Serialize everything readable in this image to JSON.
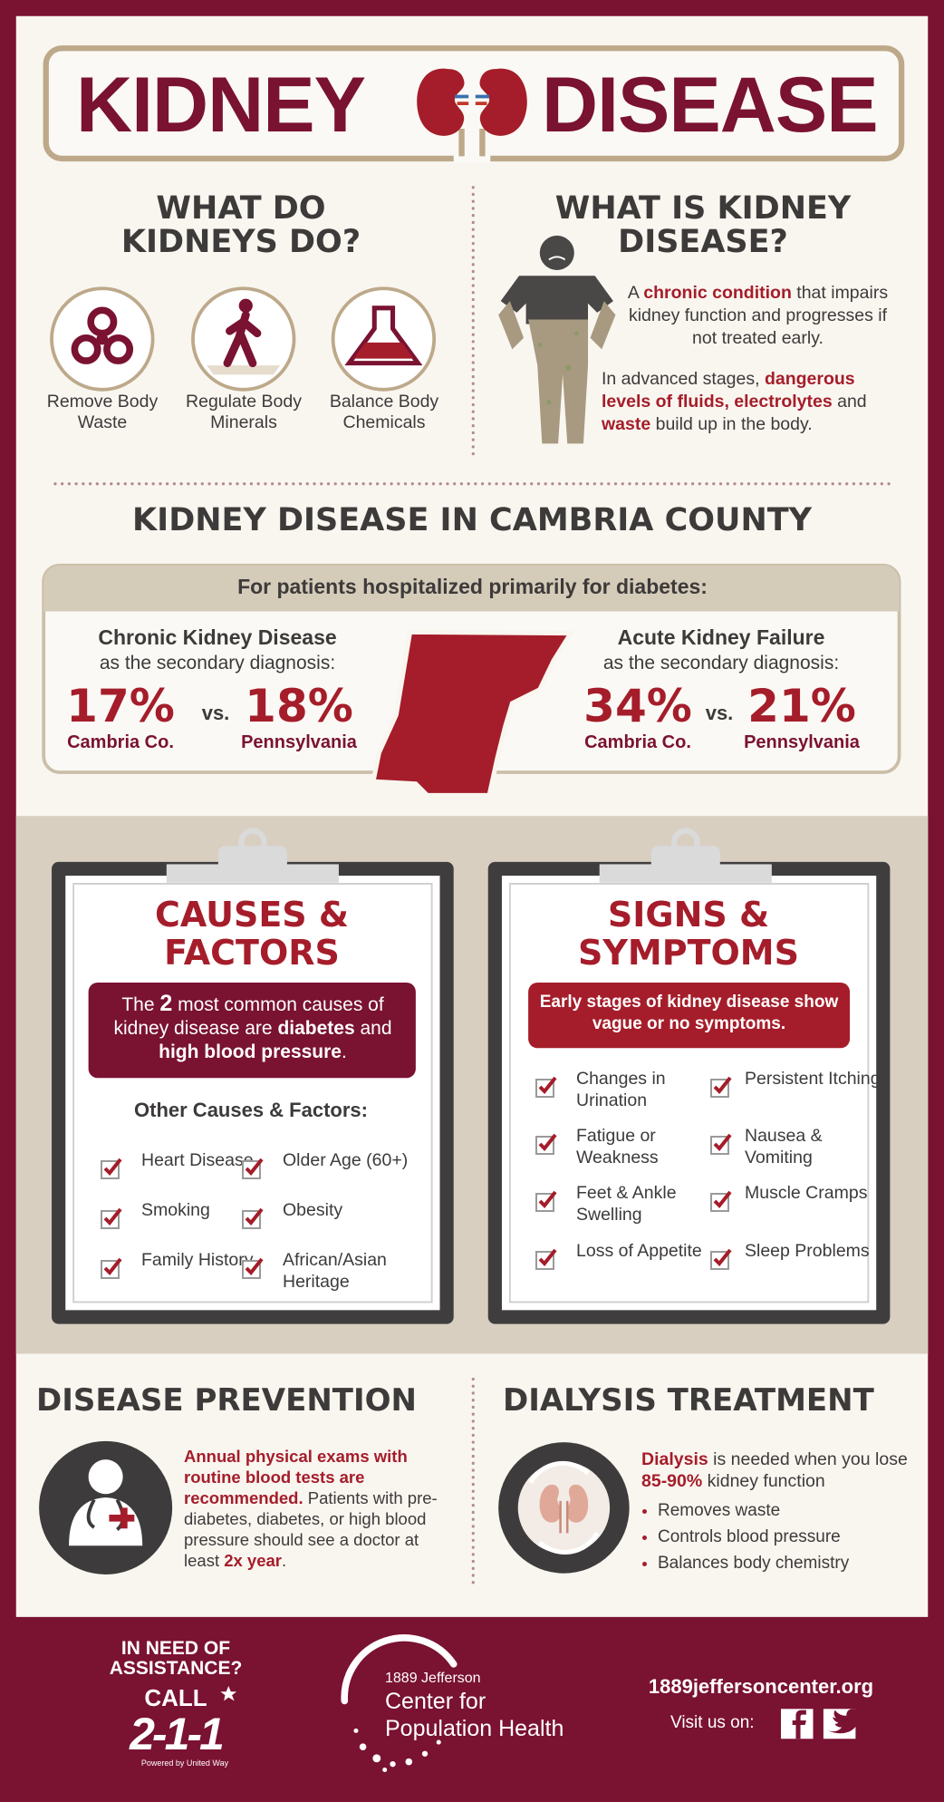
{
  "header": {
    "title_left": "KIDNEY",
    "title_right": "DISEASE"
  },
  "functions": {
    "title": "WHAT DO KIDNEYS DO?",
    "items": [
      "Remove Body Waste",
      "Regulate Body Minerals",
      "Balance Body Chemicals"
    ]
  },
  "definition": {
    "title": "WHAT IS KIDNEY DISEASE?",
    "paragraph1": [
      "A ",
      "chronic condition",
      " that impairs kidney function and progresses if not treated early."
    ],
    "paragraph2": [
      "In advanced stages, ",
      "dangerous levels of fluids, electrolytes",
      " and ",
      "waste",
      " build up in the body."
    ]
  },
  "county": {
    "title": "KIDNEY DISEASE IN CAMBRIA COUNTY",
    "subtitle": "For patients hospitalized primarily for diabetes:",
    "stats": [
      {
        "name": "Chronic Kidney Disease",
        "note": "as the secondary diagnosis:",
        "left_value": "17%",
        "left_label": "Cambria Co.",
        "vs": "vs.",
        "right_value": "18%",
        "right_label": "Pennsylvania"
      },
      {
        "name": "Acute Kidney Failure",
        "note": "as the secondary diagnosis:",
        "left_value": "34%",
        "left_label": "Cambria Co.",
        "vs": "vs.",
        "right_value": "21%",
        "right_label": "Pennsylvania"
      }
    ]
  },
  "causes": {
    "title": "CAUSES & FACTORS",
    "highlight": [
      "The ",
      "2",
      " most common causes of kidney disease are ",
      "diabetes",
      " and ",
      "high blood pressure",
      "."
    ],
    "subtitle": "Other Causes & Factors:",
    "items": [
      "Heart Disease",
      "Older Age (60+)",
      "Smoking",
      "Obesity",
      "Family History",
      "African/Asian Heritage"
    ]
  },
  "symptoms": {
    "title": "SIGNS & SYMPTOMS",
    "highlight": "Early stages of kidney disease show vague or no symptoms.",
    "items": [
      "Changes in Urination",
      "Persistent Itching",
      "Fatigue or Weakness",
      "Nausea & Vomiting",
      "Feet & Ankle Swelling",
      "Muscle Cramps",
      "Loss of Appetite",
      "Sleep Problems"
    ]
  },
  "prevention": {
    "title": "DISEASE PREVENTION",
    "text": [
      "Annual physical exams with routine blood tests are recommended.",
      " Patients with pre-diabetes, diabetes, or high blood pressure should see a doctor at least ",
      "2x year",
      "."
    ]
  },
  "dialysis": {
    "title": "DIALYSIS TREATMENT",
    "text": [
      "Dialysis",
      " is needed when you lose ",
      "85-90%",
      " kidney function"
    ],
    "bullets": [
      "Removes waste",
      "Controls blood pressure",
      "Balances body chemistry"
    ]
  },
  "footer": {
    "assistance": "IN NEED OF ASSISTANCE?",
    "call": "CALL",
    "number": "2-1-1",
    "powered": "Powered by United Way",
    "org_small": "1889 Jefferson",
    "org_name": [
      "Center for",
      "Population Health"
    ],
    "website": "1889jeffersoncenter.org",
    "visit": "Visit us on:"
  }
}
